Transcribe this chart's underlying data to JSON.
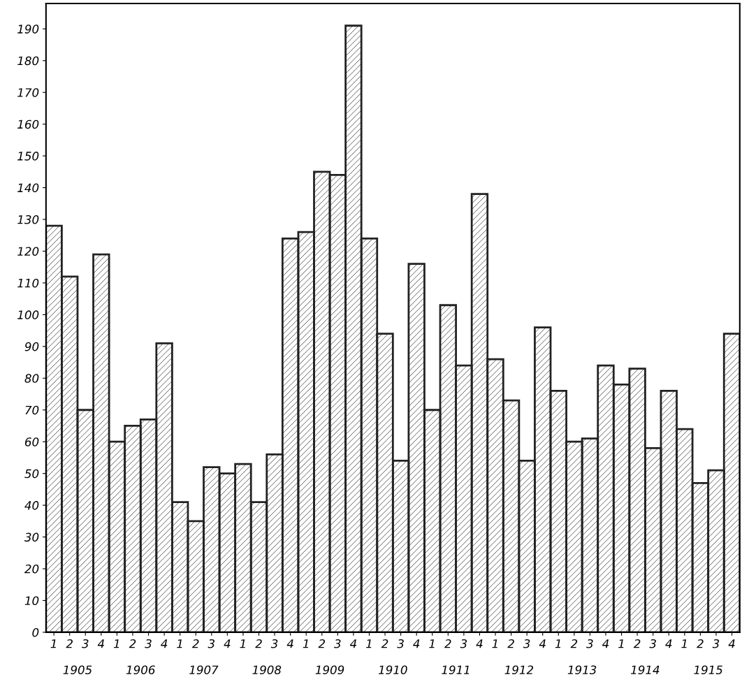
{
  "chart_data": {
    "type": "bar",
    "color": "#222222",
    "categories": [
      "1",
      "2",
      "3",
      "4",
      "1",
      "2",
      "3",
      "4",
      "1",
      "2",
      "3",
      "4",
      "1",
      "2",
      "3",
      "4",
      "1",
      "2",
      "3",
      "4",
      "1",
      "2",
      "3",
      "4",
      "1",
      "2",
      "3",
      "4",
      "1",
      "2",
      "3",
      "4",
      "1",
      "2",
      "3",
      "4",
      "1",
      "2",
      "3",
      "4",
      "1",
      "2",
      "3",
      "4"
    ],
    "values": [
      128,
      112,
      70,
      119,
      60,
      65,
      67,
      91,
      41,
      35,
      52,
      50,
      53,
      41,
      56,
      124,
      126,
      145,
      144,
      191,
      124,
      94,
      54,
      116,
      70,
      103,
      84,
      138,
      86,
      73,
      54,
      96,
      76,
      60,
      61,
      84,
      78,
      83,
      58,
      76,
      64,
      47,
      51,
      94
    ],
    "ylim": [
      0,
      198
    ],
    "yticks": [
      0,
      10,
      20,
      30,
      40,
      50,
      60,
      70,
      80,
      90,
      100,
      110,
      120,
      130,
      140,
      150,
      160,
      170,
      180,
      190
    ],
    "annotations": [
      "1905",
      "1906",
      "1907",
      "1908",
      "1909",
      "1910",
      "1911",
      "1912",
      "1913",
      "1914",
      "1915"
    ],
    "grid": false,
    "legend": false
  }
}
